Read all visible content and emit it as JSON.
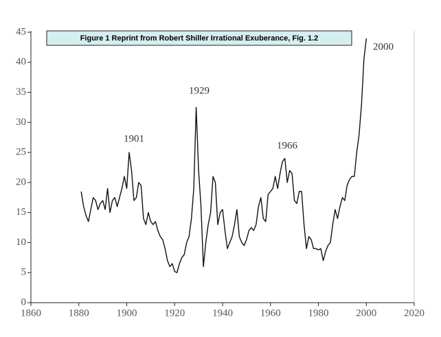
{
  "chart_data": {
    "type": "line",
    "title": "Figure 1 Reprint from Robert Shiller Irrational Exuberance, Fig. 1.2",
    "annotations": [
      "1901",
      "1929",
      "1966",
      "2000"
    ],
    "x": [
      1881,
      1882,
      1883,
      1884,
      1885,
      1886,
      1887,
      1888,
      1889,
      1890,
      1891,
      1892,
      1893,
      1894,
      1895,
      1896,
      1897,
      1898,
      1899,
      1900,
      1901,
      1902,
      1903,
      1904,
      1905,
      1906,
      1907,
      1908,
      1909,
      1910,
      1911,
      1912,
      1913,
      1914,
      1915,
      1916,
      1917,
      1918,
      1919,
      1920,
      1921,
      1922,
      1923,
      1924,
      1925,
      1926,
      1927,
      1928,
      1929,
      1930,
      1931,
      1932,
      1933,
      1934,
      1935,
      1936,
      1937,
      1938,
      1939,
      1940,
      1941,
      1942,
      1943,
      1944,
      1945,
      1946,
      1947,
      1948,
      1949,
      1950,
      1951,
      1952,
      1953,
      1954,
      1955,
      1956,
      1957,
      1958,
      1959,
      1960,
      1961,
      1962,
      1963,
      1964,
      1965,
      1966,
      1967,
      1968,
      1969,
      1970,
      1971,
      1972,
      1973,
      1974,
      1975,
      1976,
      1977,
      1978,
      1979,
      1980,
      1981,
      1982,
      1983,
      1984,
      1985,
      1986,
      1987,
      1988,
      1989,
      1990,
      1991,
      1992,
      1993,
      1994,
      1995,
      1996,
      1997,
      1998,
      1999,
      2000
    ],
    "values": [
      18.5,
      16,
      14.5,
      13.5,
      15.5,
      17.5,
      17,
      15.5,
      16.5,
      17,
      15.5,
      19,
      15,
      17,
      17.5,
      16,
      17.5,
      19,
      21,
      19,
      25,
      22,
      17,
      17.5,
      20,
      19.5,
      14,
      13,
      15,
      13.5,
      13,
      13.5,
      12,
      11,
      10.5,
      9,
      7,
      6,
      6.5,
      5.2,
      5,
      6.5,
      7.5,
      8,
      10,
      11,
      14,
      19,
      32.5,
      22,
      16,
      6,
      10,
      13,
      15,
      21,
      20,
      13,
      15,
      15.5,
      12,
      9,
      10,
      11,
      13,
      15.5,
      11,
      10,
      9.5,
      10.5,
      12,
      12.5,
      12,
      13,
      16,
      17.5,
      14,
      13.5,
      18,
      18.5,
      19,
      21,
      19,
      21.5,
      23.5,
      24,
      20,
      22,
      21.5,
      17,
      16.5,
      18.5,
      18.5,
      13,
      9,
      11,
      10.5,
      9,
      9,
      8.8,
      9,
      7,
      8.5,
      9.5,
      10,
      13,
      15.5,
      14,
      16,
      17.5,
      17,
      19.5,
      20.5,
      21,
      21,
      25,
      28,
      33,
      40.5,
      44
    ],
    "color": "#111111",
    "xlim": [
      1860,
      2020
    ],
    "xticks": [
      1860,
      1880,
      1900,
      1920,
      1940,
      1960,
      1980,
      2000,
      2020
    ],
    "ylim": [
      0,
      45
    ],
    "yticks": [
      0,
      5,
      10,
      15,
      20,
      25,
      30,
      35,
      40,
      45
    ]
  }
}
